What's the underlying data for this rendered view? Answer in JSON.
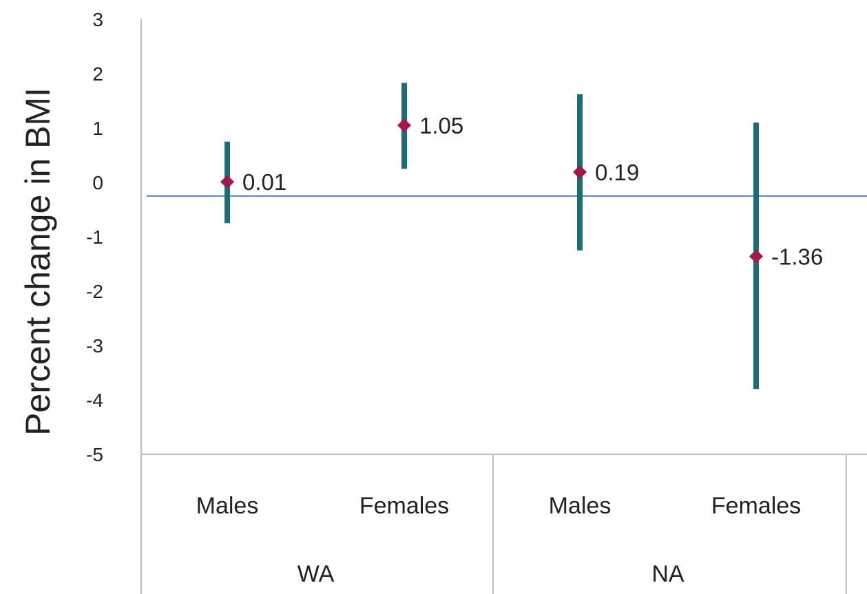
{
  "chart_data": {
    "type": "scatter",
    "title": "",
    "ylabel": "Percent change in BMI",
    "xlabel": "",
    "ylim": [
      -5,
      3
    ],
    "yticks": [
      "3",
      "2",
      "1",
      "0",
      "-1",
      "-2",
      "-3",
      "-4",
      "-5"
    ],
    "reference_line": -0.25,
    "groups": [
      {
        "label": "WA",
        "categories": [
          "Males",
          "Females"
        ]
      },
      {
        "label": "NA",
        "categories": [
          "Males",
          "Females"
        ]
      }
    ],
    "points": [
      {
        "group": "WA",
        "category": "Males",
        "value": 0.01,
        "label": "0.01",
        "low": -0.75,
        "high": 0.75
      },
      {
        "group": "WA",
        "category": "Females",
        "value": 1.05,
        "label": "1.05",
        "low": 0.25,
        "high": 1.83
      },
      {
        "group": "NA",
        "category": "Males",
        "value": 0.19,
        "label": "0.19",
        "low": -1.25,
        "high": 1.62
      },
      {
        "group": "NA",
        "category": "Females",
        "value": -1.36,
        "label": "-1.36",
        "low": -3.8,
        "high": 1.1
      }
    ],
    "grid": false,
    "legend": "none",
    "colors": {
      "error_bar": "#1d6b76",
      "marker": "#a3174f",
      "reference_line": "#4a7fc1",
      "axis": "#bfbfbf"
    }
  }
}
